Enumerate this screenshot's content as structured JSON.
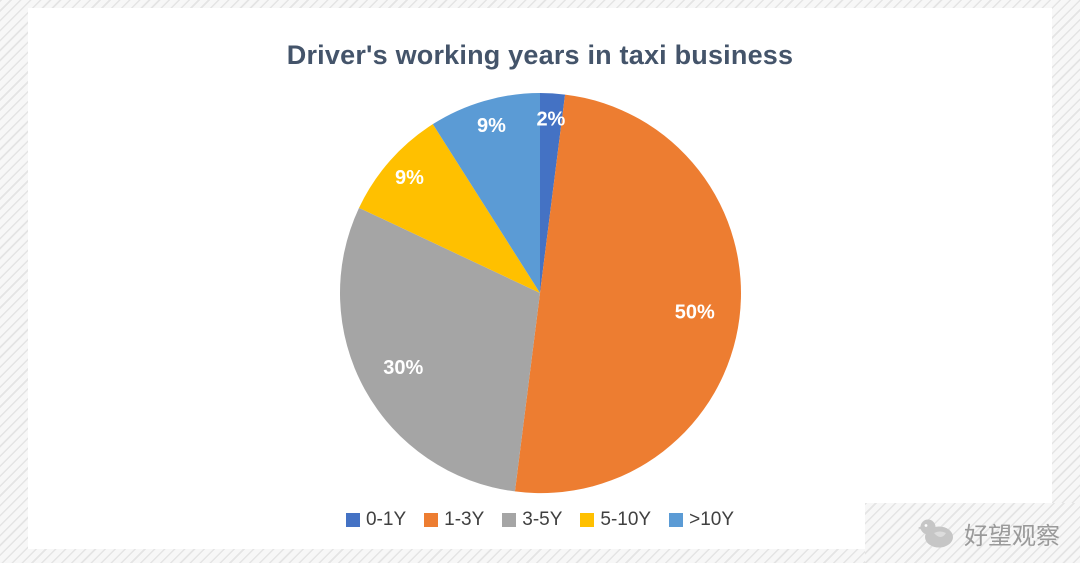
{
  "title": "Driver's working years in taxi business",
  "watermark": {
    "brand": "好望观察"
  },
  "chart_data": {
    "type": "pie",
    "title": "Driver's working years in taxi business",
    "labels": [
      "0-1Y",
      "1-3Y",
      "3-5Y",
      "5-10Y",
      ">10Y"
    ],
    "values": [
      2,
      50,
      30,
      9,
      9
    ],
    "data_labels": [
      "2%",
      "50%",
      "30%",
      "9%",
      "9%"
    ],
    "colors": [
      "#4472C4",
      "#ED7D31",
      "#A5A5A5",
      "#FFC000",
      "#5B9BD5"
    ],
    "legend_position": "bottom",
    "start_angle_deg": 0,
    "direction": "clockwise",
    "label_color": "#ffffff"
  }
}
